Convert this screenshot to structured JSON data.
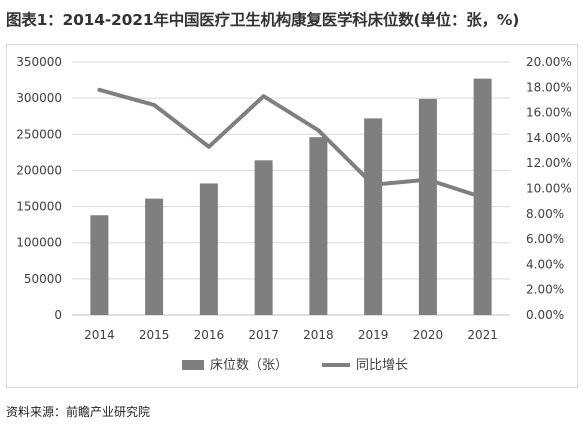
{
  "title": "图表1：2014-2021年中国医疗卫生机构康复医学科床位数(单位：张，%)",
  "source": "资料来源：前瞻产业研究院",
  "chart_data": {
    "type": "bar",
    "categories": [
      "2014",
      "2015",
      "2016",
      "2017",
      "2018",
      "2019",
      "2020",
      "2021"
    ],
    "series": [
      {
        "name": "床位数（张）",
        "type": "bar",
        "axis": "left",
        "color": "#7f7f7f",
        "values": [
          138000,
          161000,
          182000,
          214000,
          246000,
          272000,
          299000,
          327000
        ]
      },
      {
        "name": "同比增长",
        "type": "line",
        "axis": "right",
        "color": "#7f7f7f",
        "values": [
          17.8,
          16.6,
          13.3,
          17.3,
          14.6,
          10.3,
          10.7,
          9.3
        ]
      }
    ],
    "y_left": {
      "min": 0,
      "max": 350000,
      "ticks": [
        0,
        50000,
        100000,
        150000,
        200000,
        250000,
        300000,
        350000
      ]
    },
    "y_right": {
      "min": 0,
      "max": 20,
      "ticks": [
        "0.00%",
        "2.00%",
        "4.00%",
        "6.00%",
        "8.00%",
        "10.00%",
        "12.00%",
        "14.00%",
        "16.00%",
        "18.00%",
        "20.00%"
      ]
    },
    "grid": true,
    "legend_position": "bottom"
  }
}
